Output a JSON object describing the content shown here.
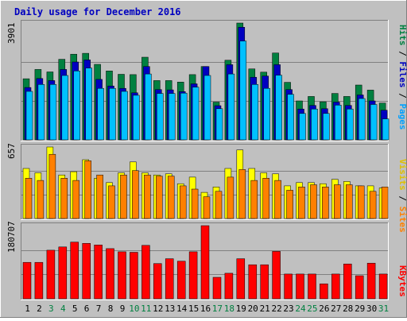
{
  "chart_data": [
    {
      "type": "bar",
      "title": "Daily usage for December 2016",
      "ymax_label": "3901",
      "ylim": [
        0,
        3901
      ],
      "categories": [
        "1",
        "2",
        "3",
        "4",
        "5",
        "6",
        "7",
        "8",
        "9",
        "10",
        "11",
        "12",
        "13",
        "14",
        "15",
        "16",
        "17",
        "18",
        "19",
        "20",
        "21",
        "22",
        "23",
        "24",
        "25",
        "26",
        "27",
        "28",
        "29",
        "30",
        "31"
      ],
      "weekend_days": [
        "3",
        "4",
        "10",
        "11",
        "17",
        "18",
        "24",
        "25",
        "31"
      ],
      "series": [
        {
          "name": "Hits",
          "color": "#008040",
          "values": [
            2040,
            2350,
            2270,
            2690,
            2860,
            2890,
            2520,
            2300,
            2190,
            2180,
            2760,
            1980,
            1980,
            1930,
            2180,
            2450,
            1260,
            2660,
            3901,
            2370,
            2260,
            2900,
            1920,
            1300,
            1450,
            1270,
            1550,
            1450,
            1830,
            1660,
            1230
          ]
        },
        {
          "name": "Files",
          "color": "#0000c0",
          "values": [
            1750,
            2050,
            1980,
            2350,
            2600,
            2670,
            2020,
            1800,
            1720,
            1570,
            2450,
            1680,
            1670,
            1610,
            1870,
            2450,
            1140,
            2510,
            3760,
            2090,
            2130,
            2510,
            1680,
            1030,
            1150,
            1040,
            1260,
            1150,
            1500,
            1300,
            990
          ]
        },
        {
          "name": "Pages",
          "color": "#00c0ff",
          "values": [
            1620,
            1850,
            1850,
            2150,
            2300,
            2400,
            1720,
            1720,
            1620,
            1490,
            2200,
            1550,
            1550,
            1560,
            1760,
            2150,
            1040,
            2200,
            3300,
            1850,
            1720,
            2160,
            1520,
            880,
            1030,
            880,
            1160,
            1030,
            1380,
            1180,
            700
          ]
        }
      ]
    },
    {
      "type": "bar",
      "ymax_label": "657",
      "ylim": [
        0,
        657
      ],
      "series": [
        {
          "name": "Visits",
          "color": "#ffff00",
          "values": [
            460,
            420,
            657,
            400,
            430,
            540,
            370,
            330,
            420,
            520,
            420,
            400,
            410,
            320,
            380,
            240,
            290,
            460,
            630,
            460,
            420,
            410,
            300,
            330,
            330,
            320,
            360,
            340,
            300,
            300,
            280
          ]
        },
        {
          "name": "Sites",
          "color": "#ff8000",
          "values": [
            370,
            350,
            590,
            370,
            350,
            530,
            400,
            300,
            400,
            440,
            400,
            390,
            390,
            300,
            270,
            200,
            250,
            380,
            450,
            350,
            370,
            350,
            260,
            290,
            310,
            290,
            310,
            310,
            300,
            250,
            290
          ]
        }
      ]
    },
    {
      "type": "bar",
      "ymax_label": "180707",
      "ylim": [
        0,
        180707
      ],
      "series": [
        {
          "name": "KBytes",
          "color": "#ff0000",
          "values": [
            90000,
            90000,
            120000,
            128000,
            140000,
            137000,
            133000,
            124000,
            116000,
            115000,
            132000,
            87000,
            99000,
            93000,
            116000,
            180707,
            53000,
            63000,
            99000,
            84000,
            84000,
            117000,
            61000,
            61000,
            61000,
            37000,
            61000,
            86000,
            57000,
            88000,
            61000
          ]
        }
      ]
    }
  ]
}
